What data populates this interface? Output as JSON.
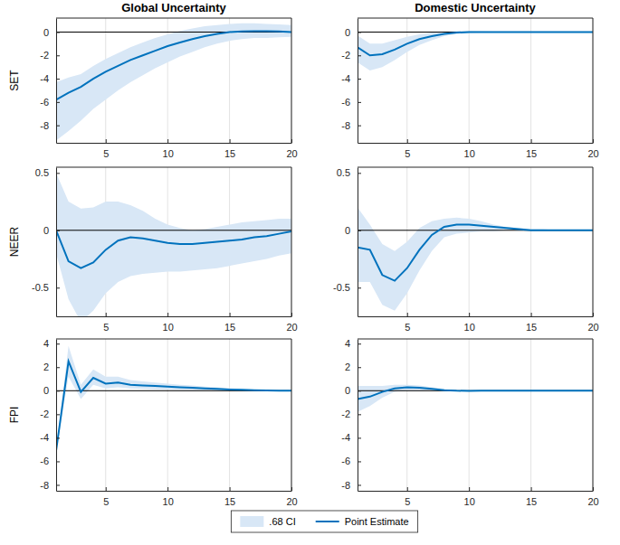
{
  "chart_data": [
    {
      "type": "line",
      "title": "Global Uncertainty",
      "ylabel": "SET",
      "grid": "x",
      "legend": "bottom",
      "x": [
        1,
        2,
        3,
        4,
        5,
        6,
        7,
        8,
        9,
        10,
        11,
        12,
        13,
        14,
        15,
        16,
        17,
        18,
        19,
        20
      ],
      "xlim": [
        1,
        20
      ],
      "xticks": [
        5,
        10,
        15,
        20
      ],
      "ylim": [
        -9.5,
        1.2
      ],
      "yticks": [
        -8,
        -6,
        -4,
        -2,
        0
      ],
      "series": [
        {
          "name": ".68 CI",
          "type": "area",
          "color": "#d8e7f6",
          "lower": [
            -9.3,
            -8.5,
            -7.6,
            -6.6,
            -5.8,
            -5.0,
            -4.3,
            -3.7,
            -3.1,
            -2.6,
            -2.1,
            -1.7,
            -1.3,
            -1.0,
            -0.75,
            -0.6,
            -0.5,
            -0.5,
            -0.45,
            -0.4
          ],
          "upper": [
            -4.3,
            -3.9,
            -3.6,
            -2.9,
            -2.3,
            -1.8,
            -1.3,
            -0.9,
            -0.5,
            -0.2,
            0.1,
            0.3,
            0.5,
            0.6,
            0.7,
            0.75,
            0.75,
            0.7,
            0.65,
            0.6
          ]
        },
        {
          "name": "Point Estimate",
          "type": "line",
          "color": "#0072bd",
          "values": [
            -5.8,
            -5.2,
            -4.7,
            -4.0,
            -3.4,
            -2.9,
            -2.4,
            -2.0,
            -1.6,
            -1.2,
            -0.9,
            -0.6,
            -0.35,
            -0.15,
            0,
            0.05,
            0.08,
            0.08,
            0.05,
            0
          ]
        }
      ]
    },
    {
      "type": "line",
      "title": "Domestic Uncertainty",
      "grid": "x",
      "x": [
        1,
        2,
        3,
        4,
        5,
        6,
        7,
        8,
        9,
        10,
        11,
        12,
        13,
        14,
        15,
        16,
        17,
        18,
        19,
        20
      ],
      "xlim": [
        1,
        20
      ],
      "xticks": [
        5,
        10,
        15,
        20
      ],
      "ylim": [
        -9.5,
        1.2
      ],
      "yticks": [
        -8,
        -6,
        -4,
        -2,
        0
      ],
      "series": [
        {
          "type": "area",
          "color": "#d8e7f6",
          "lower": [
            -2.6,
            -3.3,
            -3.0,
            -2.4,
            -1.7,
            -1.1,
            -0.7,
            -0.35,
            -0.15,
            -0.08,
            -0.04,
            -0.02,
            -0.01,
            -0.01,
            0,
            0,
            0,
            0,
            0,
            0
          ],
          "upper": [
            -0.3,
            -1.0,
            -1.0,
            -0.7,
            -0.4,
            -0.2,
            -0.05,
            0.05,
            0.07,
            0.07,
            0.05,
            0.03,
            0.02,
            0.01,
            0.01,
            0,
            0,
            0,
            0,
            0
          ]
        },
        {
          "type": "line",
          "color": "#0072bd",
          "values": [
            -1.3,
            -2.0,
            -1.9,
            -1.5,
            -1.0,
            -0.6,
            -0.35,
            -0.15,
            -0.05,
            0,
            0,
            0,
            0,
            0,
            0,
            0,
            0,
            0,
            0,
            0
          ]
        }
      ]
    },
    {
      "type": "line",
      "ylabel": "NEER",
      "grid": "x",
      "x": [
        1,
        2,
        3,
        4,
        5,
        6,
        7,
        8,
        9,
        10,
        11,
        12,
        13,
        14,
        15,
        16,
        17,
        18,
        19,
        20
      ],
      "xlim": [
        1,
        20
      ],
      "xticks": [
        5,
        10,
        15,
        20
      ],
      "ylim": [
        -0.75,
        0.55
      ],
      "yticks": [
        -0.5,
        0,
        0.5
      ],
      "series": [
        {
          "type": "area",
          "color": "#d8e7f6",
          "lower": [
            -0.2,
            -0.6,
            -0.8,
            -0.7,
            -0.55,
            -0.45,
            -0.4,
            -0.38,
            -0.37,
            -0.36,
            -0.36,
            -0.35,
            -0.34,
            -0.33,
            -0.31,
            -0.29,
            -0.27,
            -0.25,
            -0.22,
            -0.2
          ],
          "upper": [
            0.5,
            0.25,
            0.19,
            0.2,
            0.25,
            0.25,
            0.22,
            0.17,
            0.1,
            0.05,
            0.02,
            0,
            0.01,
            0.03,
            0.05,
            0.07,
            0.08,
            0.09,
            0.1,
            0.1
          ]
        },
        {
          "type": "line",
          "color": "#0072bd",
          "values": [
            0,
            -0.27,
            -0.33,
            -0.28,
            -0.17,
            -0.09,
            -0.06,
            -0.07,
            -0.09,
            -0.11,
            -0.12,
            -0.12,
            -0.11,
            -0.1,
            -0.09,
            -0.08,
            -0.06,
            -0.05,
            -0.03,
            -0.01
          ]
        }
      ]
    },
    {
      "type": "line",
      "grid": "x",
      "x": [
        1,
        2,
        3,
        4,
        5,
        6,
        7,
        8,
        9,
        10,
        11,
        12,
        13,
        14,
        15,
        16,
        17,
        18,
        19,
        20
      ],
      "xlim": [
        1,
        20
      ],
      "xticks": [
        5,
        10,
        15,
        20
      ],
      "ylim": [
        -0.75,
        0.55
      ],
      "yticks": [
        -0.5,
        0,
        0.5
      ],
      "series": [
        {
          "type": "area",
          "color": "#d8e7f6",
          "lower": [
            -0.45,
            -0.45,
            -0.65,
            -0.7,
            -0.55,
            -0.35,
            -0.18,
            -0.06,
            -0.03,
            -0.02,
            -0.01,
            -0.01,
            0,
            0,
            0,
            0,
            0,
            0,
            0,
            0
          ],
          "upper": [
            0.2,
            0.05,
            -0.12,
            -0.18,
            -0.1,
            0.02,
            0.08,
            0.1,
            0.11,
            0.1,
            0.08,
            0.05,
            0.03,
            0.02,
            0.01,
            0.01,
            0,
            0,
            0,
            0
          ]
        },
        {
          "type": "line",
          "color": "#0072bd",
          "values": [
            -0.15,
            -0.17,
            -0.39,
            -0.44,
            -0.33,
            -0.17,
            -0.04,
            0.03,
            0.05,
            0.05,
            0.04,
            0.03,
            0.02,
            0.01,
            0,
            0,
            0,
            0,
            0,
            0
          ]
        }
      ]
    },
    {
      "type": "line",
      "ylabel": "FPI",
      "grid": "x",
      "x": [
        1,
        2,
        3,
        4,
        5,
        6,
        7,
        8,
        9,
        10,
        11,
        12,
        13,
        14,
        15,
        16,
        17,
        18,
        19,
        20
      ],
      "xlim": [
        1,
        20
      ],
      "xticks": [
        5,
        10,
        15,
        20
      ],
      "ylim": [
        -8.5,
        4.4
      ],
      "yticks": [
        -8,
        -6,
        -4,
        -2,
        0,
        2,
        4
      ],
      "series": [
        {
          "type": "area",
          "color": "#d8e7f6",
          "lower": [
            -5.2,
            1.2,
            -0.7,
            0.5,
            0.2,
            0.3,
            0.2,
            0.15,
            0.12,
            0.1,
            0.08,
            0.06,
            0.04,
            0.03,
            0.02,
            0.01,
            0,
            0,
            0,
            0
          ],
          "upper": [
            -5.0,
            3.8,
            0.5,
            1.8,
            1.2,
            1.2,
            0.9,
            0.8,
            0.7,
            0.6,
            0.5,
            0.45,
            0.35,
            0.3,
            0.2,
            0.15,
            0.1,
            0.07,
            0.03,
            0.01
          ]
        },
        {
          "type": "line",
          "color": "#0072bd",
          "values": [
            -5.1,
            2.5,
            -0.1,
            1.1,
            0.6,
            0.7,
            0.5,
            0.45,
            0.4,
            0.35,
            0.3,
            0.25,
            0.2,
            0.15,
            0.1,
            0.08,
            0.05,
            0.03,
            0.01,
            0
          ]
        }
      ]
    },
    {
      "type": "line",
      "grid": "x",
      "x": [
        1,
        2,
        3,
        4,
        5,
        6,
        7,
        8,
        9,
        10,
        11,
        12,
        13,
        14,
        15,
        16,
        17,
        18,
        19,
        20
      ],
      "xlim": [
        1,
        20
      ],
      "xticks": [
        5,
        10,
        15,
        20
      ],
      "ylim": [
        -8.5,
        4.4
      ],
      "yticks": [
        -8,
        -6,
        -4,
        -2,
        0,
        2,
        4
      ],
      "series": [
        {
          "type": "area",
          "color": "#d8e7f6",
          "lower": [
            -1.8,
            -1.3,
            -0.6,
            -0.1,
            0.05,
            0.05,
            0,
            -0.05,
            -0.05,
            -0.04,
            -0.02,
            -0.01,
            0,
            0,
            0,
            0,
            0,
            0,
            0,
            0
          ],
          "upper": [
            0.4,
            0.4,
            0.4,
            0.5,
            0.5,
            0.45,
            0.3,
            0.15,
            0.05,
            0.02,
            0.01,
            0,
            0,
            0,
            0,
            0,
            0,
            0,
            0,
            0
          ]
        },
        {
          "type": "line",
          "color": "#0072bd",
          "values": [
            -0.7,
            -0.5,
            -0.1,
            0.2,
            0.3,
            0.25,
            0.15,
            0.05,
            0,
            -0.02,
            0,
            0,
            0,
            0,
            0,
            0,
            0,
            0,
            0,
            0
          ]
        }
      ]
    }
  ]
}
